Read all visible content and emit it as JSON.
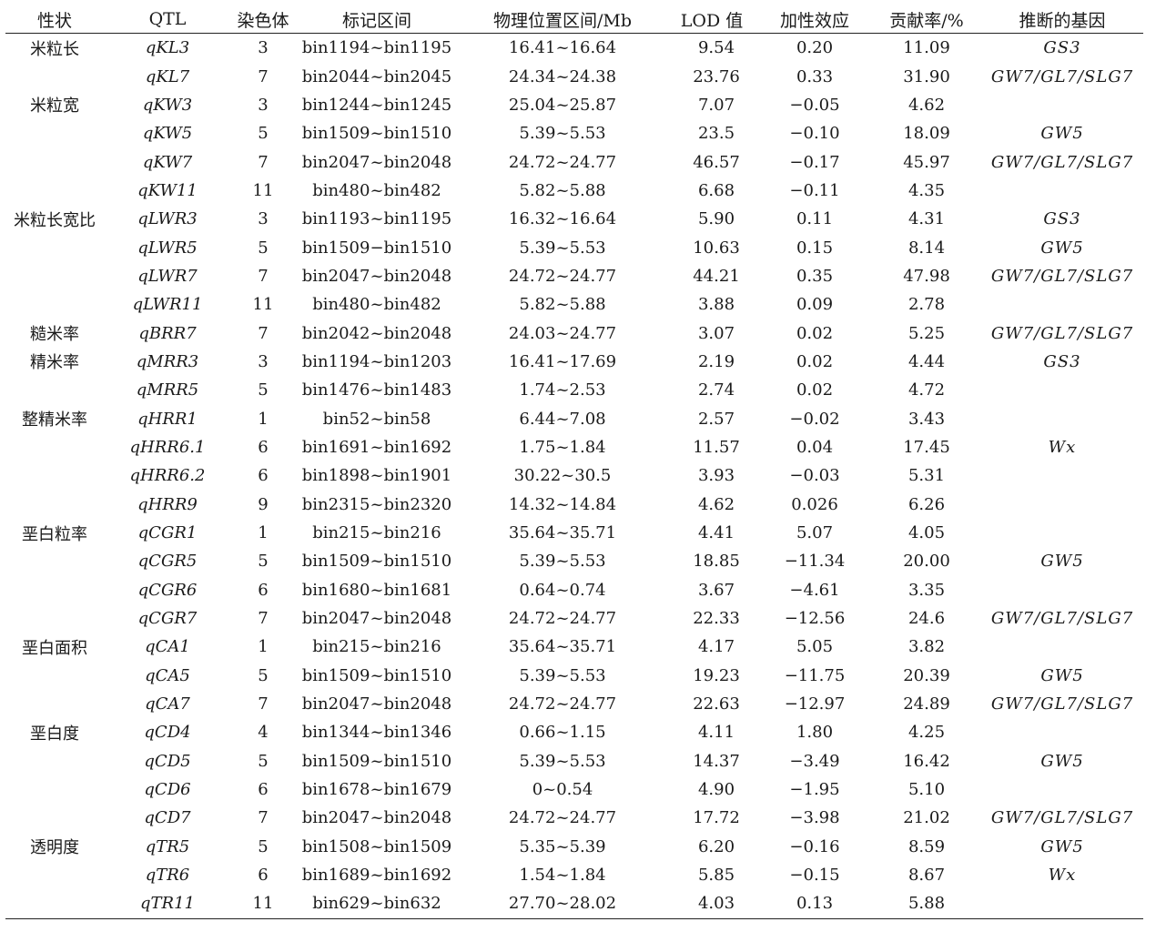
{
  "headers": [
    "性状",
    "QTL",
    "染色体",
    "标记区间",
    "物理位置区间/Mb",
    "LOD 值",
    "加性效应",
    "贡献率/%",
    "推断的基因"
  ],
  "rows": [
    {
      "trait": "米粒长",
      "qtl": "qKL3",
      "chr": "3",
      "bin": "bin1194~bin1195",
      "pos": "16.41~16.64",
      "lod": "9.54",
      "add": "0.20",
      "pve": "11.09",
      "gene": "GS3"
    },
    {
      "trait": "",
      "qtl": "qKL7",
      "chr": "7",
      "bin": "bin2044~bin2045",
      "pos": "24.34~24.38",
      "lod": "23.76",
      "add": "0.33",
      "pve": "31.90",
      "gene": "GW7/GL7/SLG7"
    },
    {
      "trait": "米粒宽",
      "qtl": "qKW3",
      "chr": "3",
      "bin": "bin1244~bin1245",
      "pos": "25.04~25.87",
      "lod": "7.07",
      "add": "−0.05",
      "pve": "4.62",
      "gene": ""
    },
    {
      "trait": "",
      "qtl": "qKW5",
      "chr": "5",
      "bin": "bin1509~bin1510",
      "pos": "5.39~5.53",
      "lod": "23.5",
      "add": "−0.10",
      "pve": "18.09",
      "gene": "GW5"
    },
    {
      "trait": "",
      "qtl": "qKW7",
      "chr": "7",
      "bin": "bin2047~bin2048",
      "pos": "24.72~24.77",
      "lod": "46.57",
      "add": "−0.17",
      "pve": "45.97",
      "gene": "GW7/GL7/SLG7"
    },
    {
      "trait": "",
      "qtl": "qKW11",
      "chr": "11",
      "bin": "bin480~bin482",
      "pos": "5.82~5.88",
      "lod": "6.68",
      "add": "−0.11",
      "pve": "4.35",
      "gene": ""
    },
    {
      "trait": "米粒长宽比",
      "qtl": "qLWR3",
      "chr": "3",
      "bin": "bin1193~bin1195",
      "pos": "16.32~16.64",
      "lod": "5.90",
      "add": "0.11",
      "pve": "4.31",
      "gene": "GS3"
    },
    {
      "trait": "",
      "qtl": "qLWR5",
      "chr": "5",
      "bin": "bin1509−bin1510",
      "pos": "5.39~5.53",
      "lod": "10.63",
      "add": "0.15",
      "pve": "8.14",
      "gene": "GW5"
    },
    {
      "trait": "",
      "qtl": "qLWR7",
      "chr": "7",
      "bin": "bin2047~bin2048",
      "pos": "24.72~24.77",
      "lod": "44.21",
      "add": "0.35",
      "pve": "47.98",
      "gene": "GW7/GL7/SLG7"
    },
    {
      "trait": "",
      "qtl": "qLWR11",
      "chr": "11",
      "bin": "bin480~bin482",
      "pos": "5.82~5.88",
      "lod": "3.88",
      "add": "0.09",
      "pve": "2.78",
      "gene": ""
    },
    {
      "trait": "糙米率",
      "qtl": "qBRR7",
      "chr": "7",
      "bin": "bin2042~bin2048",
      "pos": "24.03~24.77",
      "lod": "3.07",
      "add": "0.02",
      "pve": "5.25",
      "gene": "GW7/GL7/SLG7"
    },
    {
      "trait": "精米率",
      "qtl": "qMRR3",
      "chr": "3",
      "bin": "bin1194~bin1203",
      "pos": "16.41~17.69",
      "lod": "2.19",
      "add": "0.02",
      "pve": "4.44",
      "gene": "GS3"
    },
    {
      "trait": "",
      "qtl": "qMRR5",
      "chr": "5",
      "bin": "bin1476~bin1483",
      "pos": "1.74~2.53",
      "lod": "2.74",
      "add": "0.02",
      "pve": "4.72",
      "gene": ""
    },
    {
      "trait": "整精米率",
      "qtl": "qHRR1",
      "chr": "1",
      "bin": "bin52~bin58",
      "pos": "6.44~7.08",
      "lod": "2.57",
      "add": "−0.02",
      "pve": "3.43",
      "gene": ""
    },
    {
      "trait": "",
      "qtl": "qHRR6.1",
      "chr": "6",
      "bin": "bin1691~bin1692",
      "pos": "1.75~1.84",
      "lod": "11.57",
      "add": "0.04",
      "pve": "17.45",
      "gene": "Wx"
    },
    {
      "trait": "",
      "qtl": "qHRR6.2",
      "chr": "6",
      "bin": "bin1898~bin1901",
      "pos": "30.22~30.5",
      "lod": "3.93",
      "add": "−0.03",
      "pve": "5.31",
      "gene": ""
    },
    {
      "trait": "",
      "qtl": "qHRR9",
      "chr": "9",
      "bin": "bin2315~bin2320",
      "pos": "14.32~14.84",
      "lod": "4.62",
      "add": "0.026",
      "pve": "6.26",
      "gene": ""
    },
    {
      "trait": "垩白粒率",
      "qtl": "qCGR1",
      "chr": "1",
      "bin": "bin215~bin216",
      "pos": "35.64~35.71",
      "lod": "4.41",
      "add": "5.07",
      "pve": "4.05",
      "gene": ""
    },
    {
      "trait": "",
      "qtl": "qCGR5",
      "chr": "5",
      "bin": "bin1509~bin1510",
      "pos": "5.39~5.53",
      "lod": "18.85",
      "add": "−11.34",
      "pve": "20.00",
      "gene": "GW5"
    },
    {
      "trait": "",
      "qtl": "qCGR6",
      "chr": "6",
      "bin": "bin1680~bin1681",
      "pos": "0.64~0.74",
      "lod": "3.67",
      "add": "−4.61",
      "pve": "3.35",
      "gene": ""
    },
    {
      "trait": "",
      "qtl": "qCGR7",
      "chr": "7",
      "bin": "bin2047~bin2048",
      "pos": "24.72~24.77",
      "lod": "22.33",
      "add": "−12.56",
      "pve": "24.6",
      "gene": "GW7/GL7/SLG7"
    },
    {
      "trait": "垩白面积",
      "qtl": "qCA1",
      "chr": "1",
      "bin": "bin215~bin216",
      "pos": "35.64~35.71",
      "lod": "4.17",
      "add": "5.05",
      "pve": "3.82",
      "gene": ""
    },
    {
      "trait": "",
      "qtl": "qCA5",
      "chr": "5",
      "bin": "bin1509~bin1510",
      "pos": "5.39~5.53",
      "lod": "19.23",
      "add": "−11.75",
      "pve": "20.39",
      "gene": "GW5"
    },
    {
      "trait": "",
      "qtl": "qCA7",
      "chr": "7",
      "bin": "bin2047~bin2048",
      "pos": "24.72~24.77",
      "lod": "22.63",
      "add": "−12.97",
      "pve": "24.89",
      "gene": "GW7/GL7/SLG7"
    },
    {
      "trait": "垩白度",
      "qtl": "qCD4",
      "chr": "4",
      "bin": "bin1344~bin1346",
      "pos": "0.66~1.15",
      "lod": "4.11",
      "add": "1.80",
      "pve": "4.25",
      "gene": ""
    },
    {
      "trait": "",
      "qtl": "qCD5",
      "chr": "5",
      "bin": "bin1509~bin1510",
      "pos": "5.39~5.53",
      "lod": "14.37",
      "add": "−3.49",
      "pve": "16.42",
      "gene": "GW5"
    },
    {
      "trait": "",
      "qtl": "qCD6",
      "chr": "6",
      "bin": "bin1678~bin1679",
      "pos": "0~0.54",
      "lod": "4.90",
      "add": "−1.95",
      "pve": "5.10",
      "gene": ""
    },
    {
      "trait": "",
      "qtl": "qCD7",
      "chr": "7",
      "bin": "bin2047~bin2048",
      "pos": "24.72~24.77",
      "lod": "17.72",
      "add": "−3.98",
      "pve": "21.02",
      "gene": "GW7/GL7/SLG7"
    },
    {
      "trait": "透明度",
      "qtl": "qTR5",
      "chr": "5",
      "bin": "bin1508~bin1509",
      "pos": "5.35~5.39",
      "lod": "6.20",
      "add": "−0.16",
      "pve": "8.59",
      "gene": "GW5"
    },
    {
      "trait": "",
      "qtl": "qTR6",
      "chr": "6",
      "bin": "bin1689~bin1692",
      "pos": "1.54~1.84",
      "lod": "5.85",
      "add": "−0.15",
      "pve": "8.67",
      "gene": "Wx"
    },
    {
      "trait": "",
      "qtl": "qTR11",
      "chr": "11",
      "bin": "bin629~bin632",
      "pos": "27.70~28.02",
      "lod": "4.03",
      "add": "0.13",
      "pve": "5.88",
      "gene": ""
    }
  ]
}
